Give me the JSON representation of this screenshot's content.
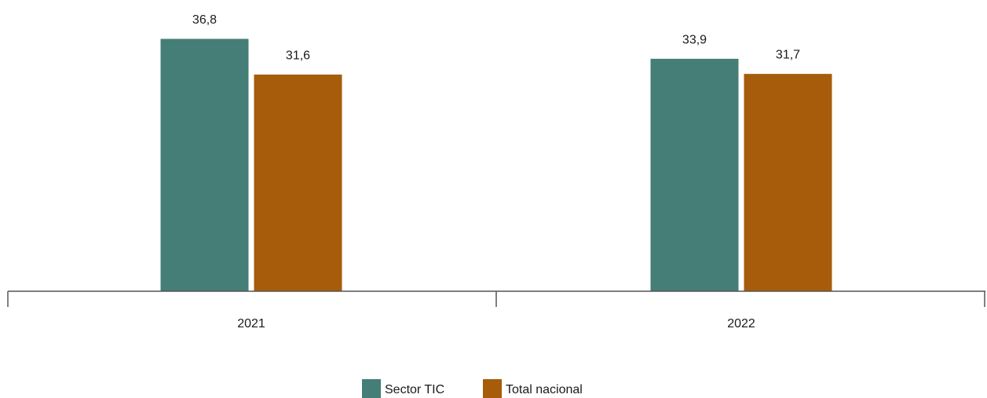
{
  "chart_data": {
    "type": "bar",
    "categories": [
      "2021",
      "2022"
    ],
    "series": [
      {
        "name": "Sector TIC",
        "values": [
          36.8,
          33.9
        ],
        "labels": [
          "36,8",
          "33,9"
        ],
        "color": "#457e77"
      },
      {
        "name": "Total nacional",
        "values": [
          31.6,
          31.7
        ],
        "labels": [
          "31,6",
          "31,7"
        ],
        "color": "#a65c0b"
      }
    ],
    "ylim": [
      0,
      36.8
    ],
    "grid": false,
    "legend_position": "bottom"
  }
}
